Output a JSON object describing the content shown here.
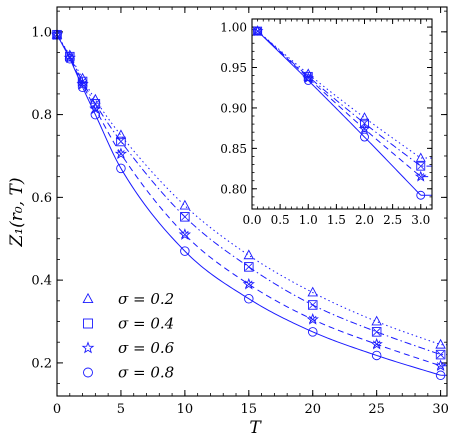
{
  "chart_data": [
    {
      "name": "main",
      "type": "line",
      "xlabel": "T",
      "ylabel": "Z₁(r₀, T)",
      "xlim": [
        0,
        30.5
      ],
      "ylim": [
        0.12,
        1.06
      ],
      "xticks": [
        0,
        5,
        10,
        15,
        20,
        25,
        30
      ],
      "xtick_labels": [
        "0",
        "5",
        "10",
        "15",
        "20",
        "25",
        "30"
      ],
      "yticks": [
        0.2,
        0.4,
        0.6,
        0.8,
        1.0
      ],
      "ytick_labels": [
        "0.2",
        "0.4",
        "0.6",
        "0.8",
        "1.0"
      ],
      "x": [
        0,
        1,
        2,
        3,
        5,
        10,
        15,
        20,
        25,
        30
      ],
      "legend_position": "bottom-left",
      "series": [
        {
          "name": "σ = 0.2",
          "marker": "triangle",
          "line": "dotted",
          "values": [
            0.993,
            0.943,
            0.887,
            0.836,
            0.75,
            0.58,
            0.46,
            0.37,
            0.3,
            0.244
          ]
        },
        {
          "name": "σ = 0.4",
          "marker": "square",
          "line": "dash-dot",
          "values": [
            0.993,
            0.94,
            0.88,
            0.826,
            0.735,
            0.553,
            0.432,
            0.34,
            0.275,
            0.22
          ]
        },
        {
          "name": "σ = 0.6",
          "marker": "star",
          "line": "dashed",
          "values": [
            0.993,
            0.937,
            0.873,
            0.814,
            0.705,
            0.51,
            0.39,
            0.305,
            0.245,
            0.193
          ]
        },
        {
          "name": "σ = 0.8",
          "marker": "circle",
          "line": "solid",
          "values": [
            0.993,
            0.935,
            0.866,
            0.8,
            0.67,
            0.47,
            0.355,
            0.275,
            0.218,
            0.17
          ]
        }
      ],
      "legend": [
        {
          "marker": "triangle",
          "label": "σ = 0.2"
        },
        {
          "marker": "square",
          "label": "σ = 0.4"
        },
        {
          "marker": "star",
          "label": "σ = 0.6"
        },
        {
          "marker": "circle",
          "label": "σ = 0.8"
        }
      ]
    },
    {
      "name": "inset",
      "type": "line",
      "xlim": [
        0,
        3.2
      ],
      "ylim": [
        0.775,
        1.01
      ],
      "xticks": [
        0,
        0.5,
        1,
        1.5,
        2,
        2.5,
        3
      ],
      "xtick_labels": [
        "0.0",
        "0.5",
        "1.0",
        "1.5",
        "2.0",
        "2.5",
        "3.0"
      ],
      "yticks": [
        0.8,
        0.85,
        0.9,
        0.95,
        1.0
      ],
      "ytick_labels": [
        "0.80",
        "0.85",
        "0.90",
        "0.95",
        "1.00"
      ],
      "x": [
        0.1,
        1,
        2,
        3
      ],
      "series": [
        {
          "marker": "triangle",
          "line": "dotted",
          "values": [
            0.995,
            0.942,
            0.888,
            0.838
          ]
        },
        {
          "marker": "square",
          "line": "dash-dot",
          "values": [
            0.995,
            0.939,
            0.881,
            0.828
          ]
        },
        {
          "marker": "star",
          "line": "dashed",
          "values": [
            0.995,
            0.937,
            0.874,
            0.815
          ]
        },
        {
          "marker": "circle",
          "line": "solid",
          "values": [
            0.995,
            0.934,
            0.864,
            0.792
          ]
        }
      ]
    }
  ],
  "colors": {
    "series": "#1a1aff",
    "axis": "#000000"
  }
}
